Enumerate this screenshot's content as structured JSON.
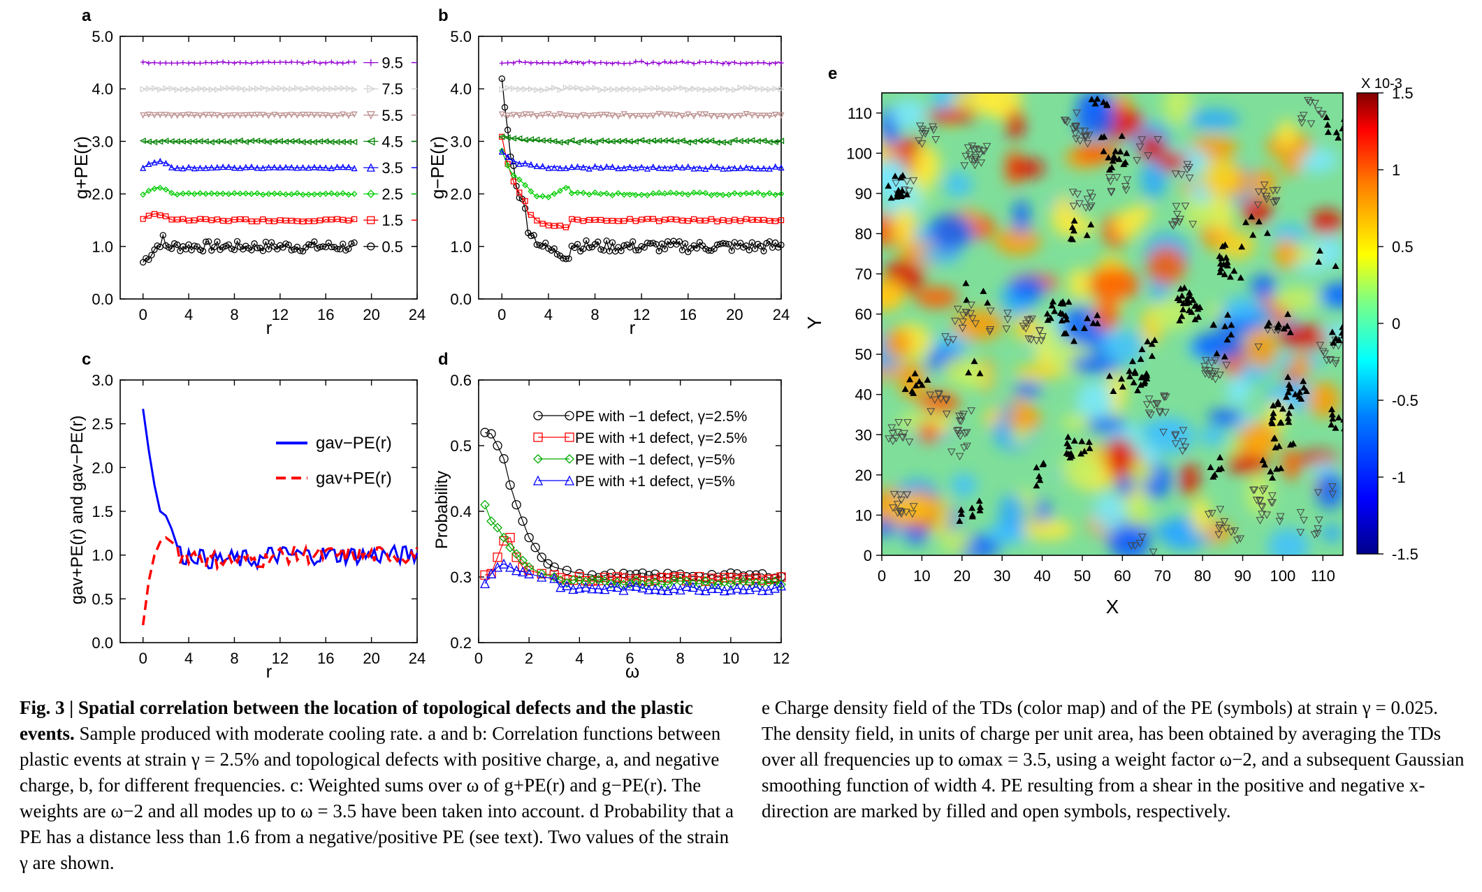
{
  "panel_labels": {
    "a": "a",
    "b": "b",
    "c": "c",
    "d": "d",
    "e": "e"
  },
  "chart_data": [
    {
      "id": "a",
      "type": "line",
      "ylabel": "g+PE(r)",
      "xlabel": "r",
      "xlim": [
        -2,
        24
      ],
      "ylim": [
        0,
        5
      ],
      "xticks": [
        "0",
        "4",
        "8",
        "12",
        "16",
        "20",
        "24"
      ],
      "yticks": [
        "0.0",
        "1.0",
        "2.0",
        "3.0",
        "4.0",
        "5.0"
      ],
      "series": [
        {
          "name": "0.5",
          "color": "#000000",
          "offset": 0,
          "marker": "circle"
        },
        {
          "name": "1.5",
          "color": "#ff0000",
          "offset": 0.5,
          "marker": "square"
        },
        {
          "name": "2.5",
          "color": "#00cc00",
          "offset": 1.0,
          "marker": "diamond"
        },
        {
          "name": "3.5",
          "color": "#0000ff",
          "offset": 1.5,
          "marker": "triangle-up"
        },
        {
          "name": "4.5",
          "color": "#008000",
          "offset": 2.0,
          "marker": "triangle-left"
        },
        {
          "name": "5.5",
          "color": "#bc8f8f",
          "offset": 2.5,
          "marker": "triangle-down"
        },
        {
          "name": "7.5",
          "color": "#d3d3d3",
          "offset": 3.0,
          "marker": "triangle-right"
        },
        {
          "name": "9.5",
          "color": "#9400d3",
          "offset": 3.5,
          "marker": "plus"
        }
      ]
    },
    {
      "id": "b",
      "type": "line",
      "ylabel": "g−PE(r)",
      "xlabel": "r",
      "xlim": [
        -2,
        24
      ],
      "ylim": [
        0,
        5
      ],
      "xticks": [
        "0",
        "4",
        "8",
        "12",
        "16",
        "20",
        "24"
      ],
      "yticks": [
        "0.0",
        "1.0",
        "2.0",
        "3.0",
        "4.0",
        "5.0"
      ],
      "start_values": [
        4.2,
        3.1,
        2.8,
        2.8,
        3.1,
        3.5,
        4.0,
        4.5
      ]
    },
    {
      "id": "c",
      "type": "line",
      "ylabel": "gav+PE(r) and gav−PE(r)",
      "xlabel": "r",
      "xlim": [
        -2,
        24
      ],
      "ylim": [
        0,
        3
      ],
      "xticks": [
        "0",
        "4",
        "8",
        "12",
        "16",
        "20",
        "24"
      ],
      "yticks": [
        "0.0",
        "0.5",
        "1.0",
        "1.5",
        "2.0",
        "2.5",
        "3.0"
      ],
      "series": [
        {
          "name": "gav−PE(r)",
          "color": "#0000ff",
          "style": "solid",
          "x": [
            0,
            0.5,
            1,
            1.5,
            2,
            2.5,
            3
          ],
          "y": [
            2.67,
            2.2,
            1.8,
            1.5,
            1.45,
            1.3,
            1.1
          ]
        },
        {
          "name": "gav+PE(r)",
          "color": "#ff0000",
          "style": "dashed",
          "x": [
            0,
            0.5,
            1,
            1.5,
            2,
            2.5,
            3
          ],
          "y": [
            0.2,
            0.7,
            1.0,
            1.15,
            1.2,
            1.15,
            1.1
          ]
        }
      ]
    },
    {
      "id": "d",
      "type": "line",
      "ylabel": "Probability",
      "xlabel": "ω",
      "xlim": [
        0,
        12
      ],
      "ylim": [
        0.2,
        0.6
      ],
      "xticks": [
        "0",
        "2",
        "4",
        "6",
        "8",
        "10",
        "12"
      ],
      "yticks": [
        "0.2",
        "0.3",
        "0.4",
        "0.5",
        "0.6"
      ],
      "series": [
        {
          "name": "PE with −1 defect, γ=2.5%",
          "color": "#000000",
          "marker": "circle",
          "x": [
            0.25,
            0.5,
            0.75,
            1,
            1.25,
            1.5,
            1.75,
            2,
            2.25,
            2.5,
            2.75,
            3,
            3.5,
            4,
            4.5
          ],
          "y": [
            0.52,
            0.518,
            0.5,
            0.48,
            0.44,
            0.41,
            0.385,
            0.36,
            0.345,
            0.33,
            0.32,
            0.315,
            0.31,
            0.305,
            0.303
          ]
        },
        {
          "name": "PE with +1 defect, γ=2.5%",
          "color": "#ff0000",
          "marker": "square",
          "x": [
            0.25,
            0.5,
            0.75,
            1,
            1.25,
            1.5,
            1.75,
            2,
            2.5,
            3
          ],
          "y": [
            0.303,
            0.305,
            0.33,
            0.355,
            0.36,
            0.33,
            0.315,
            0.31,
            0.305,
            0.303
          ]
        },
        {
          "name": "PE with −1 defect, γ=5%",
          "color": "#00aa00",
          "marker": "diamond",
          "x": [
            0.25,
            0.5,
            0.75,
            1,
            1.25,
            1.5,
            1.75,
            2,
            2.5,
            3
          ],
          "y": [
            0.41,
            0.385,
            0.375,
            0.36,
            0.345,
            0.335,
            0.325,
            0.315,
            0.305,
            0.3
          ]
        },
        {
          "name": "PE with +1 defect, γ=5%",
          "color": "#0000ff",
          "marker": "triangle-up",
          "x": [
            0.25,
            0.5,
            0.75,
            1,
            1.25,
            1.5,
            1.75,
            2,
            2.5,
            3
          ],
          "y": [
            0.29,
            0.305,
            0.315,
            0.32,
            0.315,
            0.31,
            0.308,
            0.305,
            0.3,
            0.298
          ]
        }
      ]
    },
    {
      "id": "e",
      "type": "heatmap",
      "xlabel": "X",
      "ylabel": "Y",
      "xlim": [
        0,
        115
      ],
      "ylim": [
        0,
        115
      ],
      "xticks": [
        "0",
        "10",
        "20",
        "30",
        "40",
        "50",
        "60",
        "70",
        "80",
        "90",
        "100",
        "110"
      ],
      "yticks": [
        "0",
        "10",
        "20",
        "30",
        "40",
        "50",
        "60",
        "70",
        "80",
        "90",
        "100",
        "110"
      ],
      "colorbar": {
        "title": "X 10-3",
        "ticks": [
          "1.5",
          "1",
          "0.5",
          "0",
          "-0.5",
          "-1",
          "-1.5"
        ]
      }
    }
  ],
  "caption_left": {
    "fig": "Fig. 3 | ",
    "title": "Spatial correlation between the location of topological defects and the plastic events.",
    "body": " Sample produced with moderate cooling rate. a and b: Correlation functions between plastic events at strain γ = 2.5% and topological defects with positive charge, a, and negative charge, b, for different frequencies. c: Weighted sums over ω of g+PE(r) and g−PE(r). The weights are ω−2 and all modes up to ω = 3.5 have been taken into account. d Probability that a PE has a distance less than 1.6 from a negative/positive PE (see text). Two values of the strain γ are shown."
  },
  "caption_right": {
    "body": "e Charge density field of the TDs (color map) and of the PE (symbols) at strain γ = 0.025. The density field, in units of charge per unit area, has been obtained by averaging the TDs over all frequencies up to ωmax = 3.5, using a weight factor ω−2, and a subsequent Gaussian smoothing function of width 4. PE resulting from a shear in the positive and negative x-direction are marked by filled and open symbols, respectively."
  }
}
